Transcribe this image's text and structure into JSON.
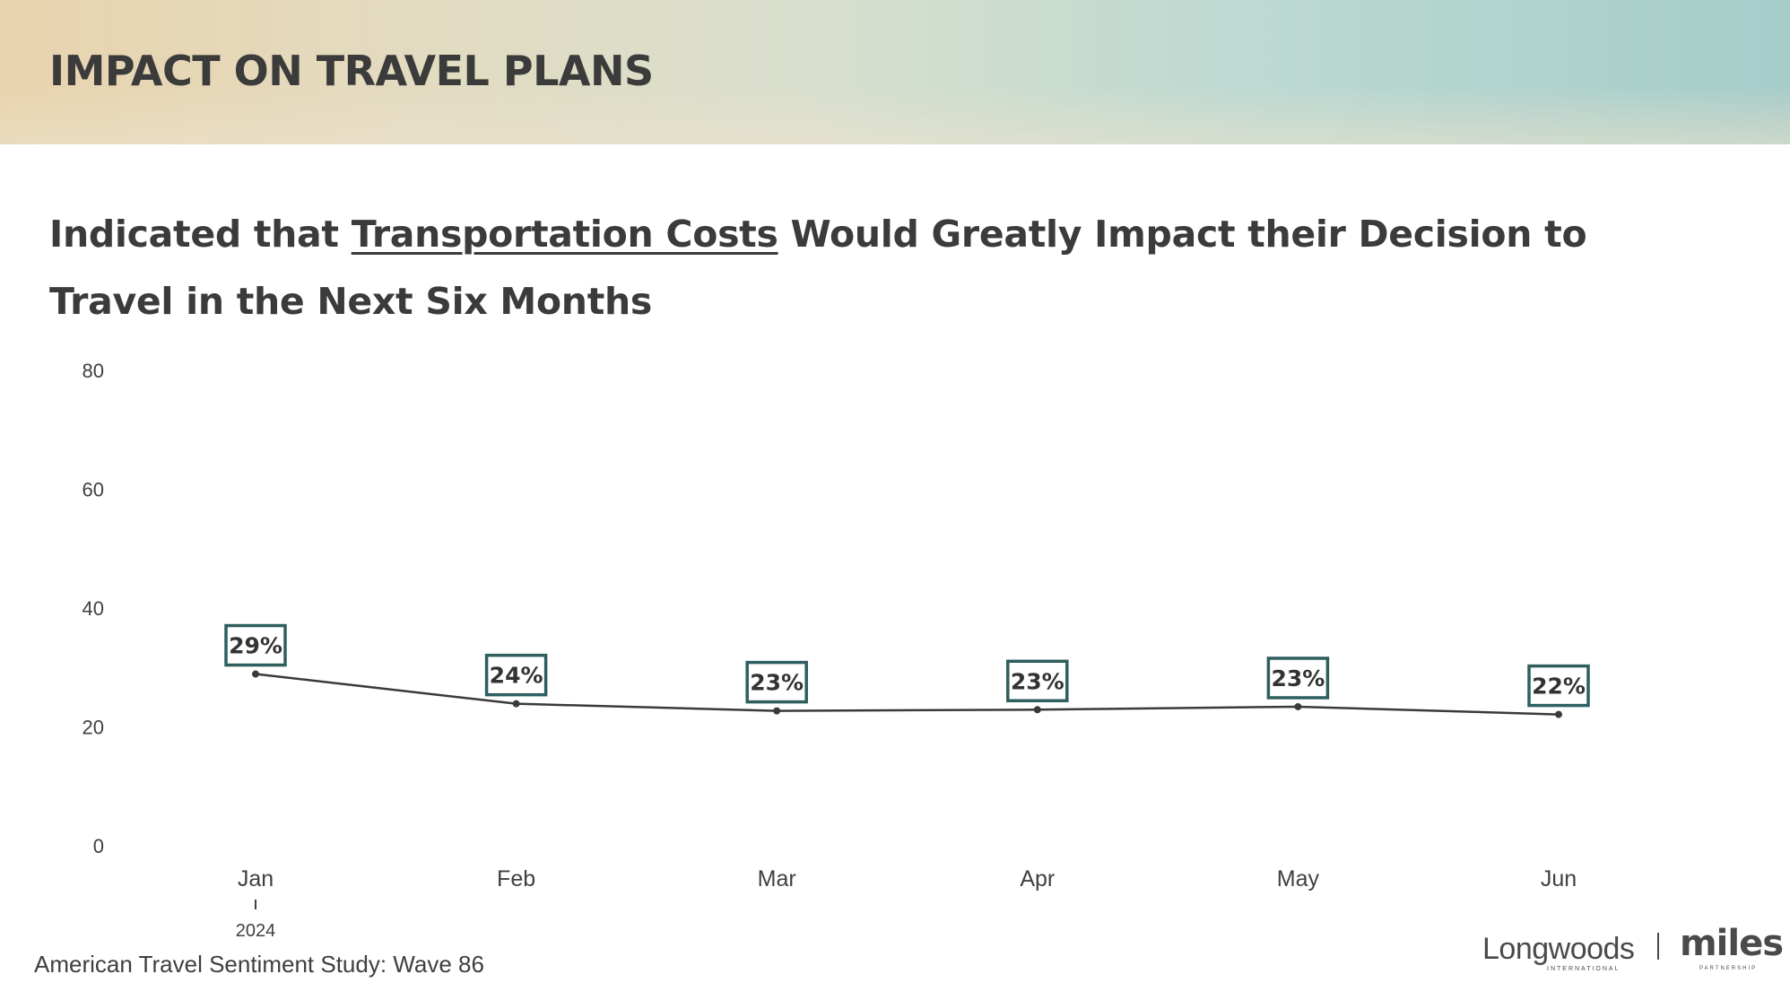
{
  "header": {
    "title": "IMPACT ON TRAVEL PLANS"
  },
  "subtitle": {
    "prefix": "Indicated that ",
    "emphasis": "Transportation Costs",
    "suffix": " Would Greatly Impact their Decision to Travel in the Next Six Months"
  },
  "chart_data": {
    "type": "line",
    "categories": [
      "Jan",
      "Feb",
      "Mar",
      "Apr",
      "May",
      "Jun"
    ],
    "year_label": "2024",
    "year_label_under": "Jan",
    "values": [
      28.9,
      23.9,
      22.7,
      22.9,
      23.4,
      22.1
    ],
    "data_labels": [
      "29%",
      "24%",
      "23%",
      "23%",
      "23%",
      "22%"
    ],
    "y_ticks": [
      0,
      20,
      40,
      60,
      80
    ],
    "ylim": [
      0,
      80
    ],
    "grid": false,
    "colors": {
      "line": "#3a3a3a",
      "label_border": "#2e5e5e",
      "label_text": "#333333",
      "tick_text": "#404040"
    }
  },
  "footer": {
    "source": "American Travel Sentiment Study: Wave 86"
  },
  "logos": {
    "longwoods": "Longwoods",
    "longwoods_sub": "INTERNATIONAL",
    "miles": "miles",
    "miles_sub": "PARTNERSHIP"
  }
}
